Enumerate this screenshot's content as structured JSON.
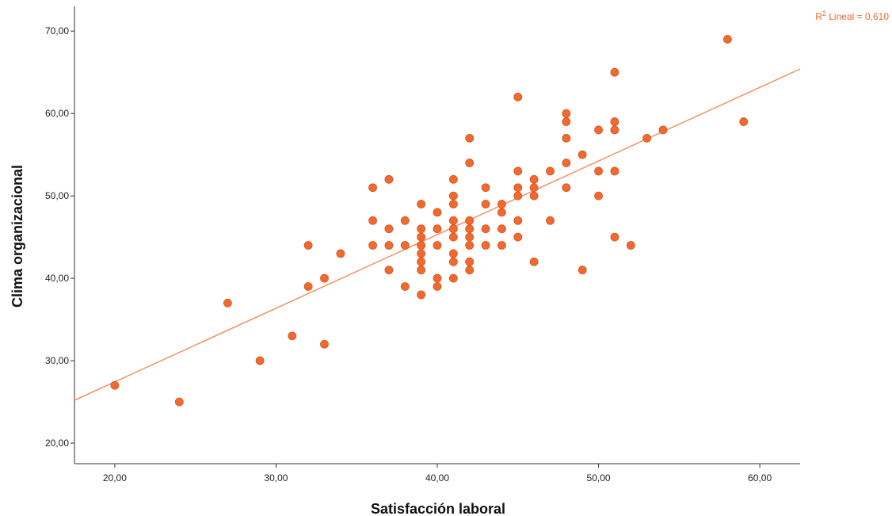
{
  "chart_data": {
    "type": "scatter",
    "xlabel": "Satisfacción laboral",
    "ylabel": "Clima organizacional",
    "xlim": [
      17.5,
      62.5
    ],
    "ylim": [
      17.5,
      73
    ],
    "x_ticks": [
      "20,00",
      "30,00",
      "40,00",
      "50,00",
      "60,00"
    ],
    "x_tick_values": [
      20,
      30,
      40,
      50,
      60
    ],
    "y_ticks": [
      "20,00",
      "30,00",
      "40,00",
      "50,00",
      "60,00",
      "70,00"
    ],
    "y_tick_values": [
      20,
      30,
      40,
      50,
      60,
      70
    ],
    "fit_line": {
      "label_prefix": "R",
      "label_sup": "2",
      "label_suffix": " Lineal = 0,610",
      "y_at_xmin": 25.2,
      "y_at_xmax": 65.4
    },
    "point_color": "#f0692e",
    "line_color": "#f28a5a",
    "points": [
      [
        20,
        27
      ],
      [
        24,
        25
      ],
      [
        27,
        37
      ],
      [
        29,
        30
      ],
      [
        31,
        33
      ],
      [
        32,
        44
      ],
      [
        32,
        39
      ],
      [
        33,
        40
      ],
      [
        33,
        32
      ],
      [
        34,
        43
      ],
      [
        36,
        51
      ],
      [
        36,
        47
      ],
      [
        36,
        44
      ],
      [
        37,
        52
      ],
      [
        37,
        46
      ],
      [
        37,
        44
      ],
      [
        37,
        41
      ],
      [
        38,
        47
      ],
      [
        38,
        44
      ],
      [
        38,
        39
      ],
      [
        39,
        49
      ],
      [
        39,
        46
      ],
      [
        39,
        45
      ],
      [
        39,
        44
      ],
      [
        39,
        43
      ],
      [
        39,
        42
      ],
      [
        39,
        41
      ],
      [
        39,
        38
      ],
      [
        40,
        48
      ],
      [
        40,
        46
      ],
      [
        40,
        44
      ],
      [
        40,
        40
      ],
      [
        40,
        39
      ],
      [
        41,
        52
      ],
      [
        41,
        50
      ],
      [
        41,
        49
      ],
      [
        41,
        47
      ],
      [
        41,
        46
      ],
      [
        41,
        45
      ],
      [
        41,
        43
      ],
      [
        41,
        42
      ],
      [
        41,
        40
      ],
      [
        42,
        57
      ],
      [
        42,
        54
      ],
      [
        42,
        47
      ],
      [
        42,
        46
      ],
      [
        42,
        45
      ],
      [
        42,
        44
      ],
      [
        42,
        42
      ],
      [
        42,
        41
      ],
      [
        43,
        51
      ],
      [
        43,
        49
      ],
      [
        43,
        46
      ],
      [
        43,
        44
      ],
      [
        44,
        49
      ],
      [
        44,
        48
      ],
      [
        44,
        46
      ],
      [
        44,
        44
      ],
      [
        45,
        62
      ],
      [
        45,
        53
      ],
      [
        45,
        51
      ],
      [
        45,
        50
      ],
      [
        45,
        47
      ],
      [
        45,
        45
      ],
      [
        46,
        52
      ],
      [
        46,
        51
      ],
      [
        46,
        50
      ],
      [
        46,
        42
      ],
      [
        47,
        53
      ],
      [
        47,
        47
      ],
      [
        48,
        60
      ],
      [
        48,
        59
      ],
      [
        48,
        57
      ],
      [
        48,
        54
      ],
      [
        48,
        51
      ],
      [
        49,
        55
      ],
      [
        49,
        41
      ],
      [
        50,
        58
      ],
      [
        50,
        53
      ],
      [
        50,
        50
      ],
      [
        51,
        65
      ],
      [
        51,
        59
      ],
      [
        51,
        58
      ],
      [
        51,
        53
      ],
      [
        51,
        45
      ],
      [
        52,
        44
      ],
      [
        53,
        57
      ],
      [
        54,
        58
      ],
      [
        58,
        69
      ],
      [
        59,
        59
      ]
    ]
  }
}
